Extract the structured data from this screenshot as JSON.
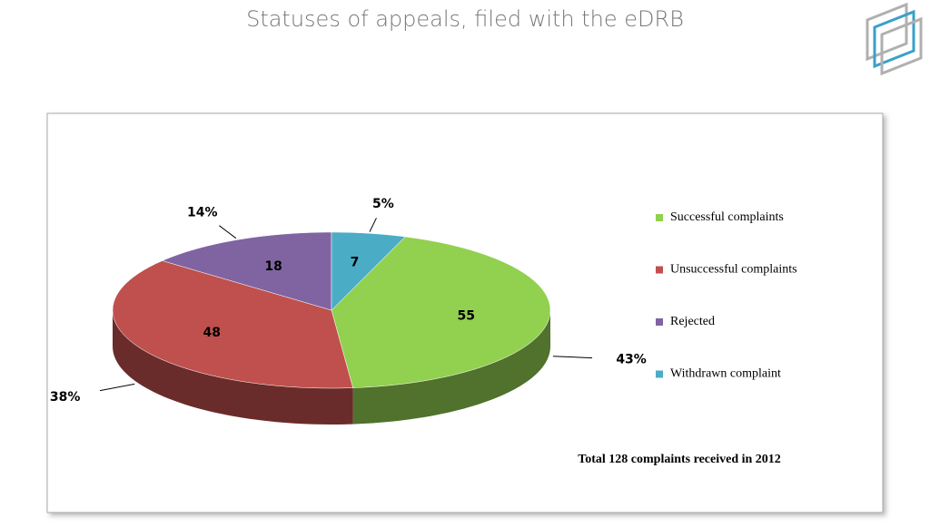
{
  "chart_data": {
    "type": "pie",
    "title": "Statuses of appeals, filed with the eDRB",
    "categories": [
      "Successful complaints",
      "Unsuccessful complaints",
      "Rejected",
      "Withdrawn complaint"
    ],
    "values": [
      55,
      48,
      18,
      7
    ],
    "percent_labels": [
      "43%",
      "38%",
      "14%",
      "5%"
    ],
    "colors": [
      "#92d050",
      "#c0504d",
      "#8064a2",
      "#4bacc6"
    ],
    "annotation": "Total 128 complaints received in 2012"
  }
}
